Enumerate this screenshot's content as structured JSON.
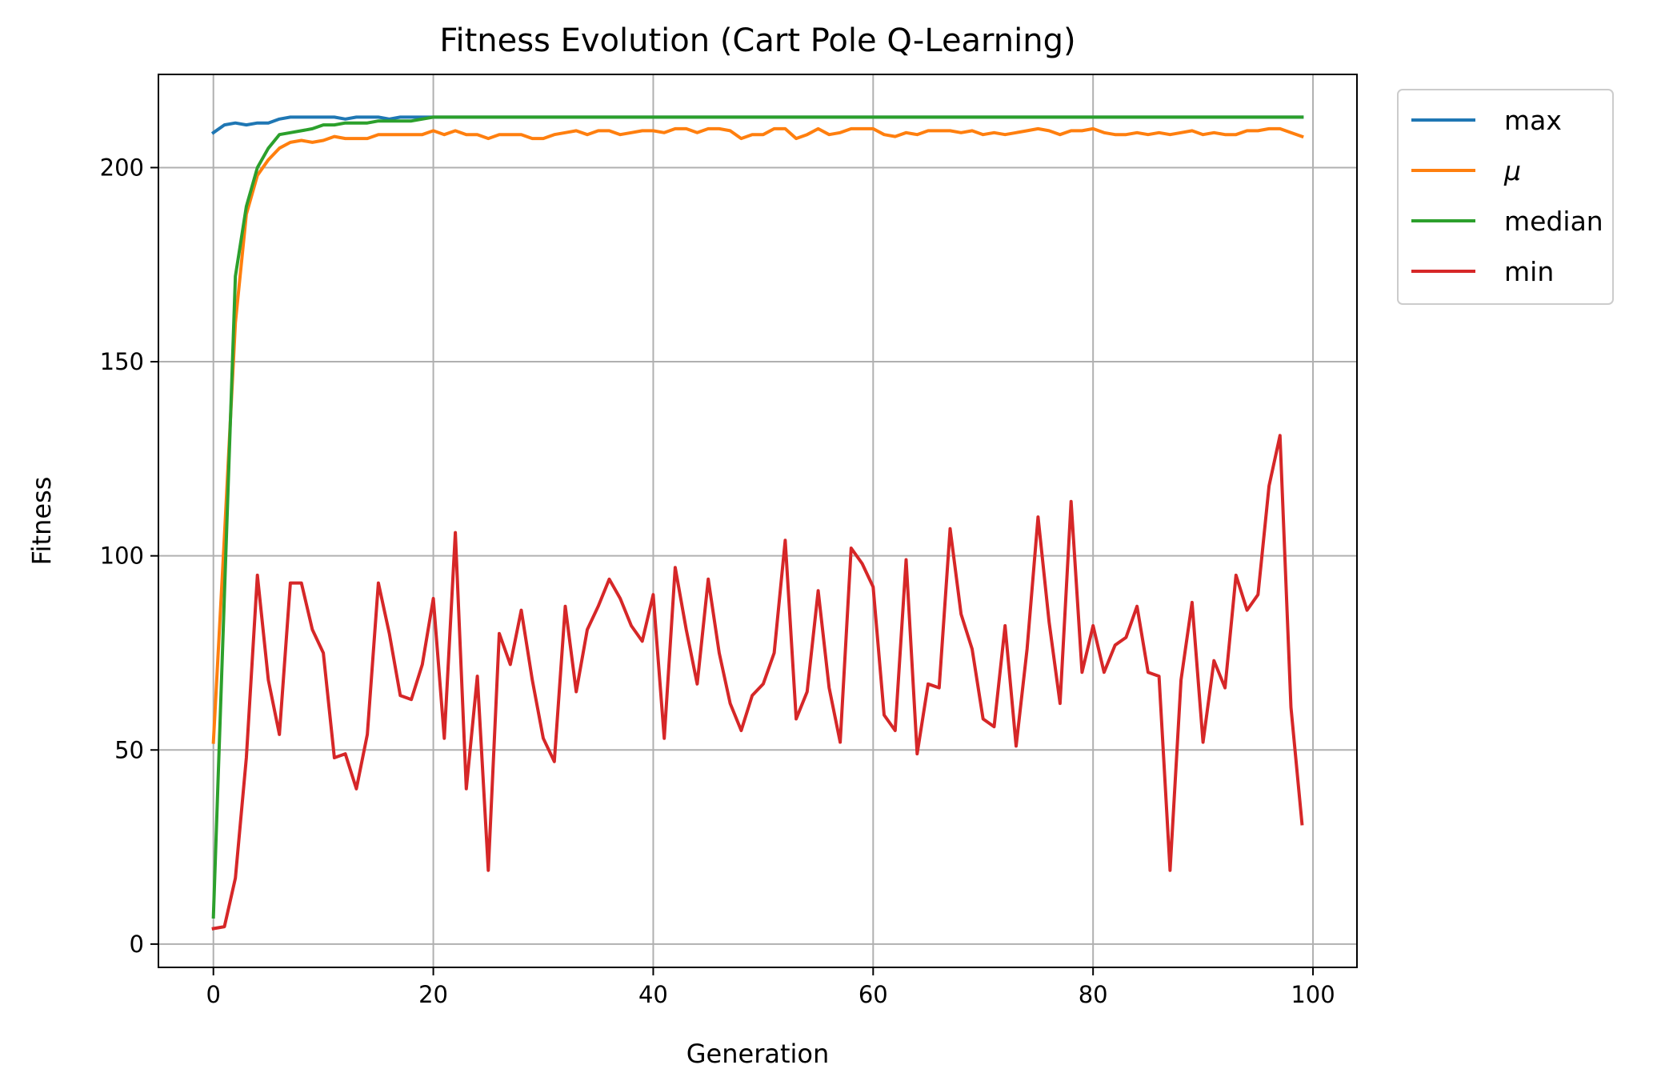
{
  "chart_data": {
    "type": "line",
    "title": "Fitness Evolution (Cart Pole Q-Learning)",
    "xlabel": "Generation",
    "ylabel": "Fitness",
    "xlim": [
      -5,
      104
    ],
    "ylim": [
      -6,
      224
    ],
    "xticks": [
      0,
      20,
      40,
      60,
      80,
      100
    ],
    "yticks": [
      0,
      50,
      100,
      150,
      200
    ],
    "grid": true,
    "legend_position": "outside-top-right",
    "series": [
      {
        "name": "max",
        "color": "#1f77b4",
        "x": [
          0,
          1,
          2,
          3,
          4,
          5,
          6,
          7,
          8,
          9,
          10,
          11,
          12,
          13,
          14,
          15,
          16,
          17,
          18,
          19,
          20,
          21,
          22,
          23,
          24,
          25,
          26,
          27,
          28,
          29,
          30,
          31,
          32,
          33,
          34,
          35,
          36,
          37,
          38,
          39,
          40,
          41,
          42,
          43,
          44,
          45,
          46,
          47,
          48,
          49,
          50,
          51,
          52,
          53,
          54,
          55,
          56,
          57,
          58,
          59,
          60,
          61,
          62,
          63,
          64,
          65,
          66,
          67,
          68,
          69,
          70,
          71,
          72,
          73,
          74,
          75,
          76,
          77,
          78,
          79,
          80,
          81,
          82,
          83,
          84,
          85,
          86,
          87,
          88,
          89,
          90,
          91,
          92,
          93,
          94,
          95,
          96,
          97,
          98,
          99
        ],
        "values": [
          209,
          211,
          211.5,
          211,
          211.5,
          211.5,
          212.5,
          213,
          213,
          213,
          213,
          213,
          212.5,
          213,
          213,
          213,
          212.5,
          213,
          213,
          213,
          213,
          213,
          213,
          213,
          213,
          213,
          213,
          213,
          213,
          213,
          213,
          213,
          213,
          213,
          213,
          213,
          213,
          213,
          213,
          213,
          213,
          213,
          213,
          213,
          213,
          213,
          213,
          213,
          213,
          213,
          213,
          213,
          213,
          213,
          213,
          213,
          213,
          213,
          213,
          213,
          213,
          213,
          213,
          213,
          213,
          213,
          213,
          213,
          213,
          213,
          213,
          213,
          213,
          213,
          213,
          213,
          213,
          213,
          213,
          213,
          213,
          213,
          213,
          213,
          213,
          213,
          213,
          213,
          213,
          213,
          213,
          213,
          213,
          213,
          213,
          213,
          213,
          213,
          213,
          213
        ]
      },
      {
        "name": "μ",
        "color": "#ff7f0e",
        "x": [
          0,
          1,
          2,
          3,
          4,
          5,
          6,
          7,
          8,
          9,
          10,
          11,
          12,
          13,
          14,
          15,
          16,
          17,
          18,
          19,
          20,
          21,
          22,
          23,
          24,
          25,
          26,
          27,
          28,
          29,
          30,
          31,
          32,
          33,
          34,
          35,
          36,
          37,
          38,
          39,
          40,
          41,
          42,
          43,
          44,
          45,
          46,
          47,
          48,
          49,
          50,
          51,
          52,
          53,
          54,
          55,
          56,
          57,
          58,
          59,
          60,
          61,
          62,
          63,
          64,
          65,
          66,
          67,
          68,
          69,
          70,
          71,
          72,
          73,
          74,
          75,
          76,
          77,
          78,
          79,
          80,
          81,
          82,
          83,
          84,
          85,
          86,
          87,
          88,
          89,
          90,
          91,
          92,
          93,
          94,
          95,
          96,
          97,
          98,
          99
        ],
        "values": [
          52,
          105,
          160,
          188,
          198,
          202,
          205,
          206.5,
          207,
          206.5,
          207,
          208,
          207.5,
          207.5,
          207.5,
          208.5,
          208.5,
          208.5,
          208.5,
          208.5,
          209.5,
          208.5,
          209.5,
          208.5,
          208.5,
          207.5,
          208.5,
          208.5,
          208.5,
          207.5,
          207.5,
          208.5,
          209,
          209.5,
          208.5,
          209.5,
          209.5,
          208.5,
          209,
          209.5,
          209.5,
          209,
          210,
          210,
          209,
          210,
          210,
          209.5,
          207.5,
          208.5,
          208.5,
          210,
          210,
          207.5,
          208.5,
          210,
          208.5,
          209,
          210,
          210,
          210,
          208.5,
          208,
          209,
          208.5,
          209.5,
          209.5,
          209.5,
          209,
          209.5,
          208.5,
          209,
          208.5,
          209,
          209.5,
          210,
          209.5,
          208.5,
          209.5,
          209.5,
          210,
          209,
          208.5,
          208.5,
          209,
          208.5,
          209,
          208.5,
          209,
          209.5,
          208.5,
          209,
          208.5,
          208.5,
          209.5,
          209.5,
          210,
          210,
          209,
          208
        ]
      },
      {
        "name": "median",
        "color": "#2ca02c",
        "x": [
          0,
          1,
          2,
          3,
          4,
          5,
          6,
          7,
          8,
          9,
          10,
          11,
          12,
          13,
          14,
          15,
          16,
          17,
          18,
          19,
          20,
          21,
          22,
          23,
          24,
          25,
          26,
          27,
          28,
          29,
          30,
          31,
          32,
          33,
          34,
          35,
          36,
          37,
          38,
          39,
          40,
          41,
          42,
          43,
          44,
          45,
          46,
          47,
          48,
          49,
          50,
          51,
          52,
          53,
          54,
          55,
          56,
          57,
          58,
          59,
          60,
          61,
          62,
          63,
          64,
          65,
          66,
          67,
          68,
          69,
          70,
          71,
          72,
          73,
          74,
          75,
          76,
          77,
          78,
          79,
          80,
          81,
          82,
          83,
          84,
          85,
          86,
          87,
          88,
          89,
          90,
          91,
          92,
          93,
          94,
          95,
          96,
          97,
          98,
          99
        ],
        "values": [
          7,
          90,
          172,
          190,
          200,
          205,
          208.5,
          209,
          209.5,
          210,
          211,
          211,
          211.5,
          211.5,
          211.5,
          212,
          212,
          212,
          212,
          212.5,
          213,
          213,
          213,
          213,
          213,
          213,
          213,
          213,
          213,
          213,
          213,
          213,
          213,
          213,
          213,
          213,
          213,
          213,
          213,
          213,
          213,
          213,
          213,
          213,
          213,
          213,
          213,
          213,
          213,
          213,
          213,
          213,
          213,
          213,
          213,
          213,
          213,
          213,
          213,
          213,
          213,
          213,
          213,
          213,
          213,
          213,
          213,
          213,
          213,
          213,
          213,
          213,
          213,
          213,
          213,
          213,
          213,
          213,
          213,
          213,
          213,
          213,
          213,
          213,
          213,
          213,
          213,
          213,
          213,
          213,
          213,
          213,
          213,
          213,
          213,
          213,
          213,
          213,
          213,
          213
        ]
      },
      {
        "name": "min",
        "color": "#d62728",
        "x": [
          0,
          1,
          2,
          3,
          4,
          5,
          6,
          7,
          8,
          9,
          10,
          11,
          12,
          13,
          14,
          15,
          16,
          17,
          18,
          19,
          20,
          21,
          22,
          23,
          24,
          25,
          26,
          27,
          28,
          29,
          30,
          31,
          32,
          33,
          34,
          35,
          36,
          37,
          38,
          39,
          40,
          41,
          42,
          43,
          44,
          45,
          46,
          47,
          48,
          49,
          50,
          51,
          52,
          53,
          54,
          55,
          56,
          57,
          58,
          59,
          60,
          61,
          62,
          63,
          64,
          65,
          66,
          67,
          68,
          69,
          70,
          71,
          72,
          73,
          74,
          75,
          76,
          77,
          78,
          79,
          80,
          81,
          82,
          83,
          84,
          85,
          86,
          87,
          88,
          89,
          90,
          91,
          92,
          93,
          94,
          95,
          96,
          97,
          98,
          99
        ],
        "values": [
          4,
          4.5,
          17,
          48,
          95,
          68,
          54,
          93,
          93,
          81,
          75,
          48,
          49,
          40,
          54,
          93,
          80,
          64,
          63,
          72,
          89,
          53,
          106,
          40,
          69,
          19,
          80,
          72,
          86,
          68,
          53,
          47,
          87,
          65,
          81,
          87,
          94,
          89,
          82,
          78,
          90,
          53,
          97,
          81,
          67,
          94,
          75,
          62,
          55,
          64,
          67,
          75,
          104,
          58,
          65,
          91,
          66,
          52,
          102,
          98,
          92,
          59,
          55,
          99,
          49,
          67,
          66,
          107,
          85,
          76,
          58,
          56,
          82,
          51,
          76,
          110,
          83,
          62,
          114,
          70,
          82,
          70,
          77,
          79,
          87,
          70,
          69,
          19,
          68,
          88,
          52,
          73,
          66,
          95,
          86,
          90,
          118,
          131,
          61,
          31
        ]
      }
    ]
  }
}
